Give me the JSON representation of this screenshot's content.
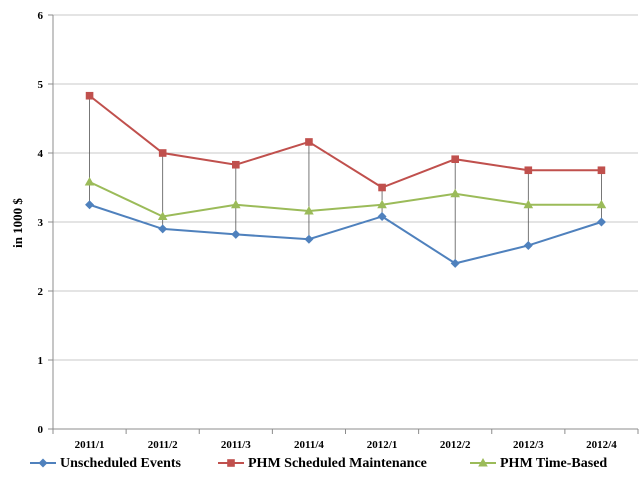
{
  "chart_data": {
    "type": "line",
    "title": "",
    "xlabel": "",
    "ylabel": "in 1000 $",
    "ylim": [
      0,
      6
    ],
    "yticks": [
      0,
      1,
      2,
      3,
      4,
      5,
      6
    ],
    "grid": true,
    "drop_lines": true,
    "legend_position": "bottom",
    "categories": [
      "2011/1",
      "2011/2",
      "2011/3",
      "2011/4",
      "2012/1",
      "2012/2",
      "2012/3",
      "2012/4"
    ],
    "series": [
      {
        "name": "Unscheduled Events",
        "color": "#4f81bd",
        "marker": "diamond",
        "values": [
          3.25,
          2.9,
          2.82,
          2.75,
          3.08,
          2.4,
          2.66,
          3.0
        ]
      },
      {
        "name": "PHM Scheduled Maintenance",
        "color": "#c0504d",
        "marker": "square",
        "values": [
          4.83,
          4.0,
          3.83,
          4.16,
          3.5,
          3.91,
          3.75,
          3.75
        ]
      },
      {
        "name": "PHM Time-Based",
        "color": "#9bbb59",
        "marker": "triangle",
        "values": [
          3.58,
          3.08,
          3.25,
          3.16,
          3.25,
          3.41,
          3.25,
          3.25
        ]
      }
    ]
  }
}
